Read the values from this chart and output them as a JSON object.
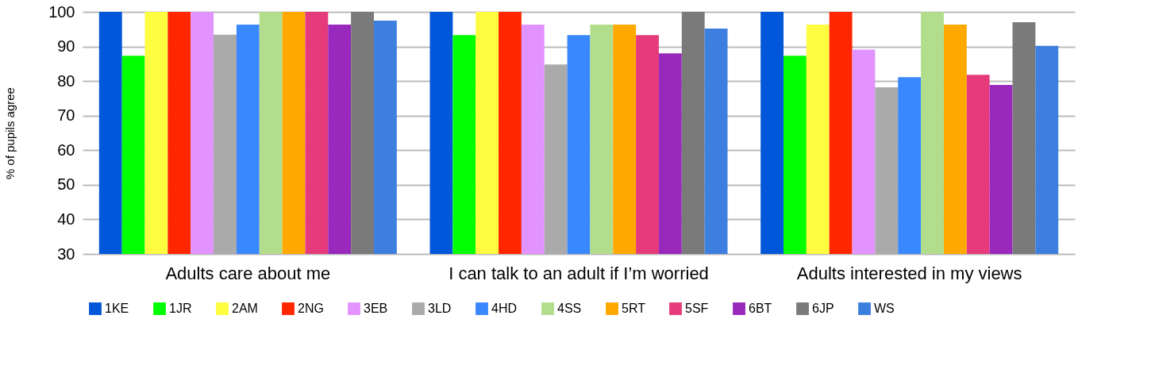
{
  "chart_data": {
    "type": "bar",
    "ylabel": "% of pupils agree",
    "categories": [
      "Adults care about me",
      "I can talk to an adult if I’m worried",
      "Adults interested in my views"
    ],
    "series": [
      {
        "name": "1KE",
        "color": "#0057d9",
        "values": [
          100,
          100,
          100
        ]
      },
      {
        "name": "1JR",
        "color": "#00ff00",
        "values": [
          87.3,
          93.3,
          87.3
        ]
      },
      {
        "name": "2AM",
        "color": "#fffd40",
        "values": [
          100,
          100,
          96.3
        ]
      },
      {
        "name": "2NG",
        "color": "#ff2600",
        "values": [
          100,
          100,
          100
        ]
      },
      {
        "name": "3EB",
        "color": "#e393ff",
        "values": [
          100,
          96.3,
          89.1
        ]
      },
      {
        "name": "3LD",
        "color": "#aaaaaa",
        "values": [
          93.4,
          84.8,
          78.2
        ]
      },
      {
        "name": "4HD",
        "color": "#3a88fe",
        "values": [
          96.3,
          93.3,
          81.1
        ]
      },
      {
        "name": "4SS",
        "color": "#b2dd8c",
        "values": [
          100,
          96.3,
          100
        ]
      },
      {
        "name": "5RT",
        "color": "#ffa800",
        "values": [
          100,
          96.3,
          96.3
        ]
      },
      {
        "name": "5SF",
        "color": "#e53b7a",
        "values": [
          100,
          93.3,
          81.8
        ]
      },
      {
        "name": "6BT",
        "color": "#9929bd",
        "values": [
          96.3,
          88,
          78.9
        ]
      },
      {
        "name": "6JP",
        "color": "#7a7a7a",
        "values": [
          100,
          100,
          97
        ]
      },
      {
        "name": "WS",
        "color": "#3d7fdf",
        "values": [
          97.5,
          95.2,
          90.2
        ]
      }
    ],
    "ylim": [
      30,
      100
    ],
    "yticks": [
      30,
      40,
      50,
      60,
      70,
      80,
      90,
      100
    ],
    "grid": "y",
    "legend": "bottom"
  }
}
